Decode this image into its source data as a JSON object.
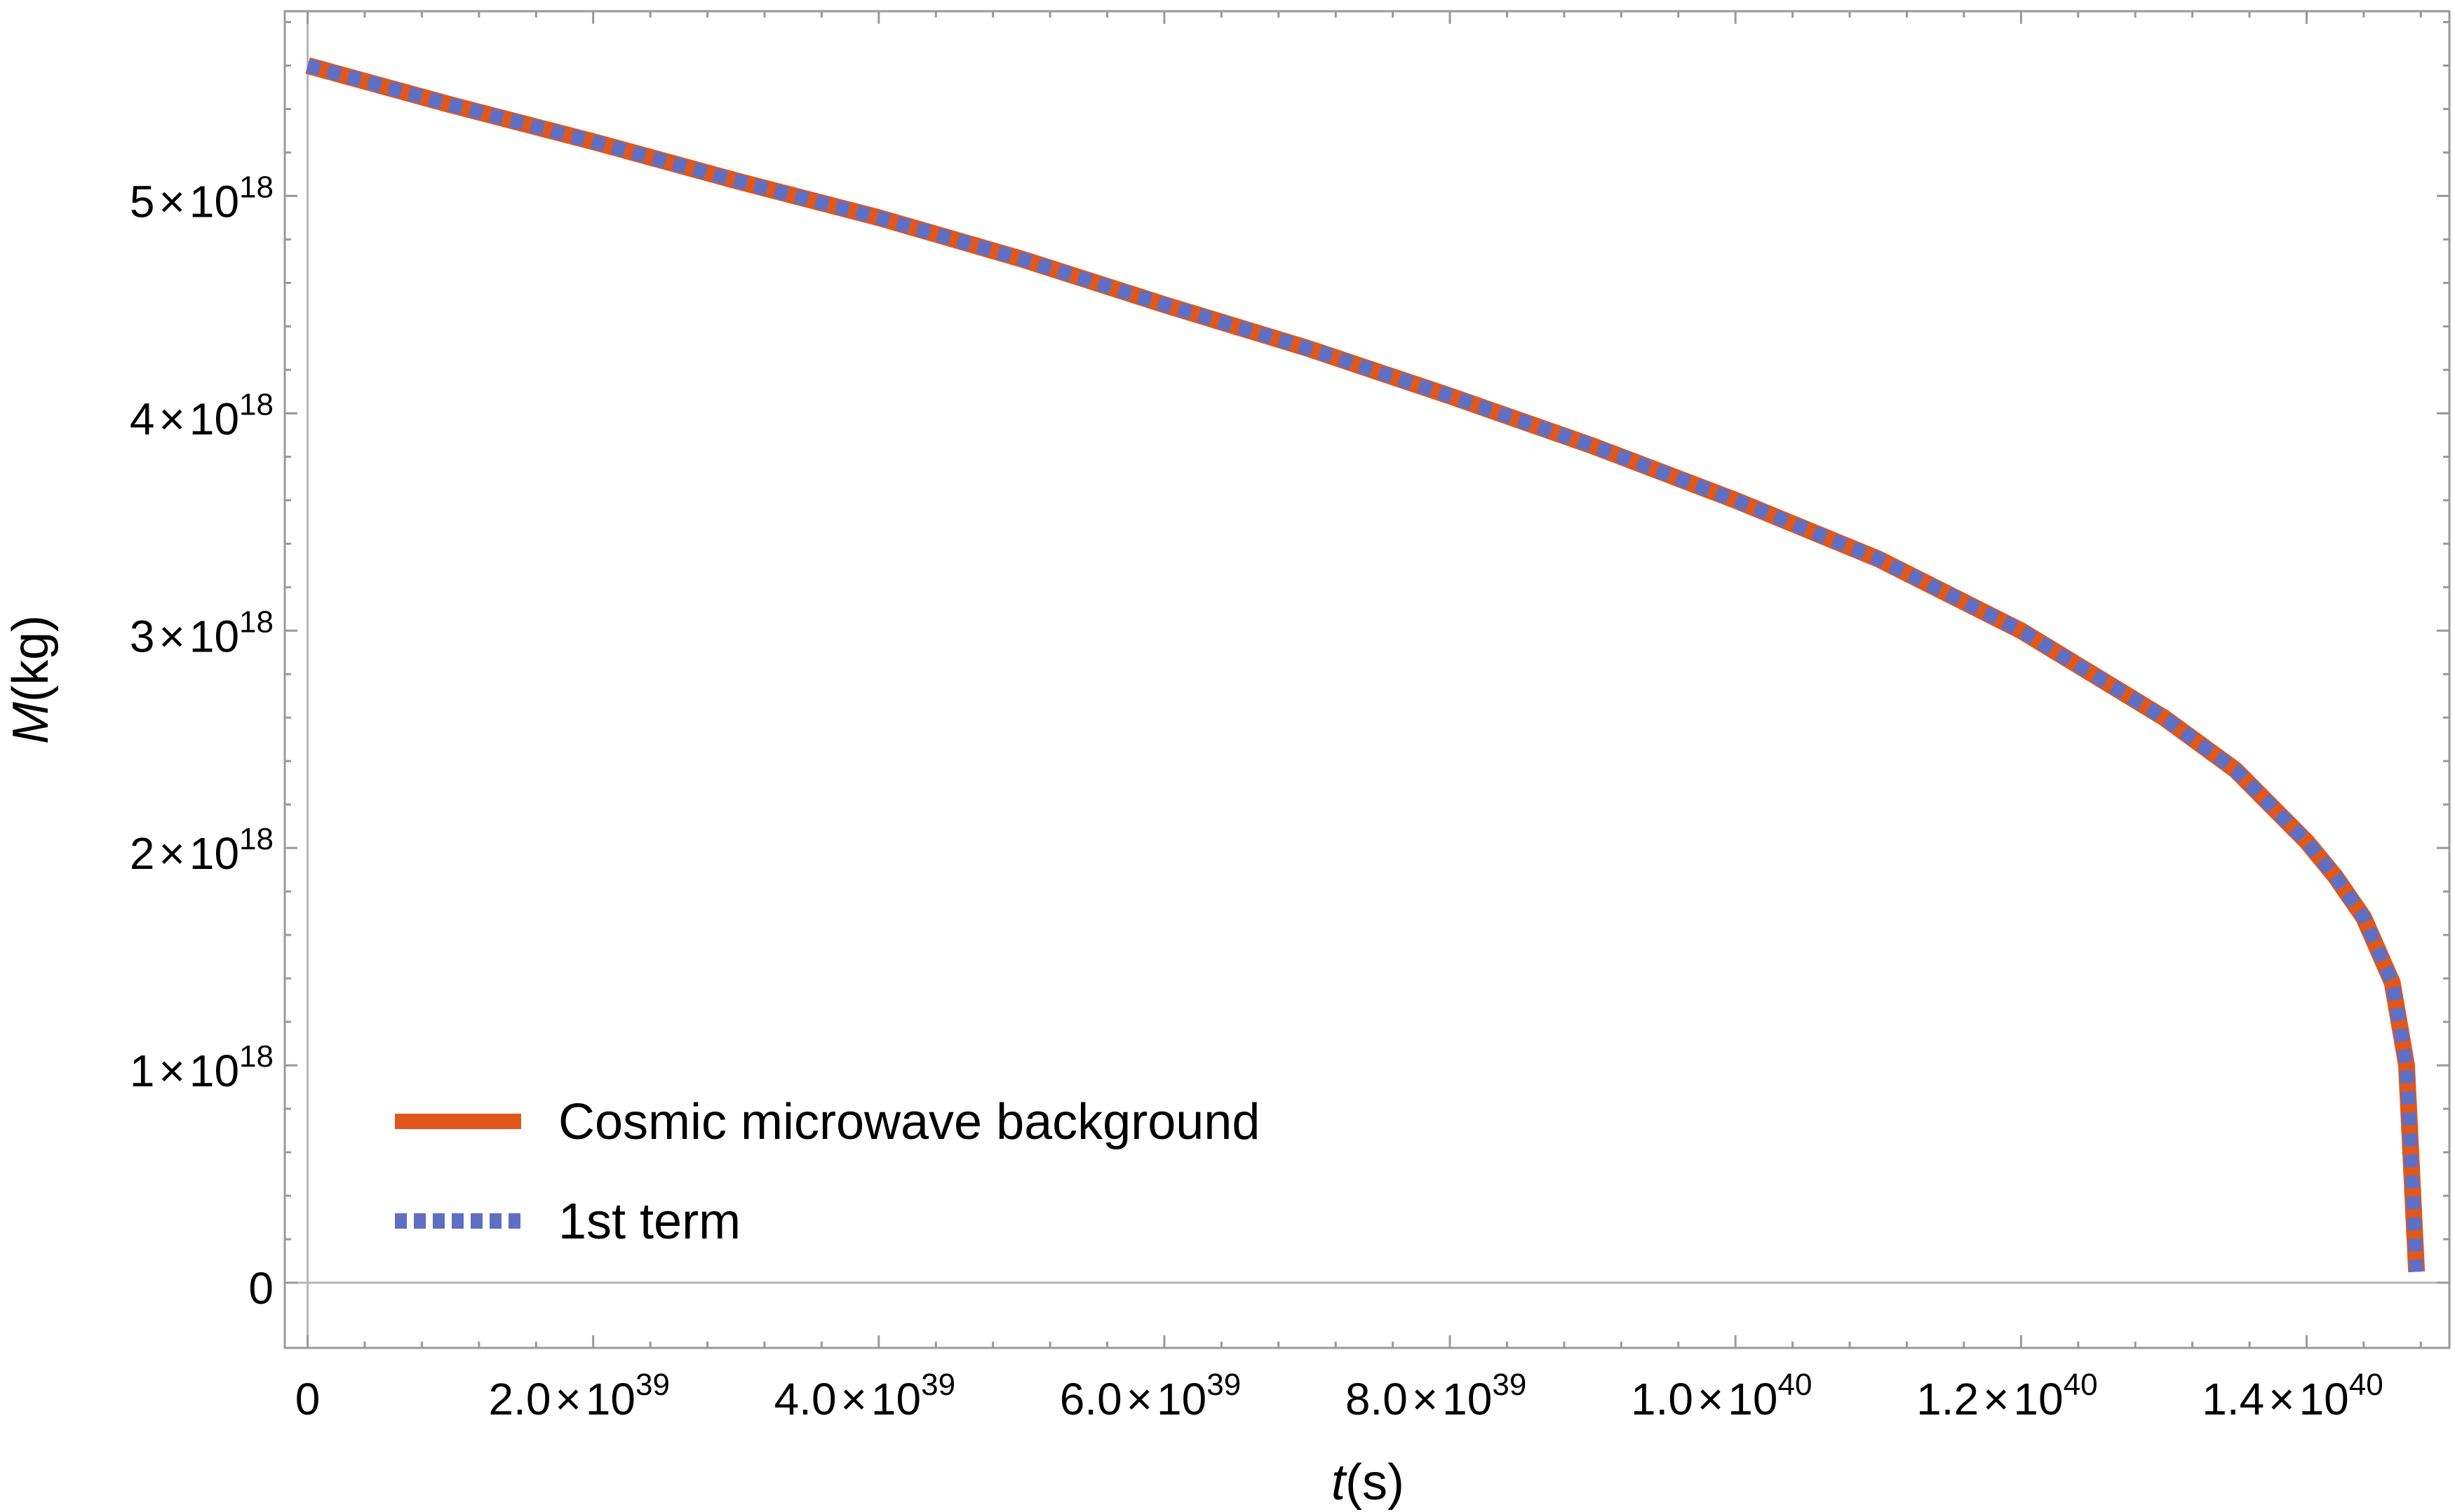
{
  "chart_data": {
    "type": "line",
    "title": "",
    "xlabel": {
      "var": "t",
      "unit": "(s)"
    },
    "ylabel": {
      "var": "M",
      "unit": "(kg)"
    },
    "xlim": [
      -1.6e+38,
      1.5e+40
    ],
    "ylim": [
      -3e+17,
      5.85e+18
    ],
    "grid": false,
    "legend_position": "bottom-left",
    "x_ticks": [
      {
        "value": 0,
        "mantissa": "0",
        "times": "",
        "base": "",
        "exp": ""
      },
      {
        "value": 2e+39,
        "mantissa": "2.0",
        "times": "×",
        "base": "10",
        "exp": "39"
      },
      {
        "value": 4e+39,
        "mantissa": "4.0",
        "times": "×",
        "base": "10",
        "exp": "39"
      },
      {
        "value": 6e+39,
        "mantissa": "6.0",
        "times": "×",
        "base": "10",
        "exp": "39"
      },
      {
        "value": 8e+39,
        "mantissa": "8.0",
        "times": "×",
        "base": "10",
        "exp": "39"
      },
      {
        "value": 1e+40,
        "mantissa": "1.0",
        "times": "×",
        "base": "10",
        "exp": "40"
      },
      {
        "value": 1.2e+40,
        "mantissa": "1.2",
        "times": "×",
        "base": "10",
        "exp": "40"
      },
      {
        "value": 1.4e+40,
        "mantissa": "1.4",
        "times": "×",
        "base": "10",
        "exp": "40"
      }
    ],
    "y_ticks": [
      {
        "value": 0,
        "mantissa": "0",
        "times": "",
        "base": "",
        "exp": ""
      },
      {
        "value": 1e+18,
        "mantissa": "1",
        "times": "×",
        "base": "10",
        "exp": "18"
      },
      {
        "value": 2e+18,
        "mantissa": "2",
        "times": "×",
        "base": "10",
        "exp": "18"
      },
      {
        "value": 3e+18,
        "mantissa": "3",
        "times": "×",
        "base": "10",
        "exp": "18"
      },
      {
        "value": 4e+18,
        "mantissa": "4",
        "times": "×",
        "base": "10",
        "exp": "18"
      },
      {
        "value": 5e+18,
        "mantissa": "5",
        "times": "×",
        "base": "10",
        "exp": "18"
      }
    ],
    "series": [
      {
        "name": "Cosmic microwave background",
        "color": "#e0571c",
        "style": "solid",
        "x": [
          0,
          1e+39,
          2e+39,
          3e+39,
          4e+39,
          5e+39,
          6e+39,
          7e+39,
          8e+39,
          9e+39,
          1e+40,
          1.1e+40,
          1.2e+40,
          1.3e+40,
          1.35e+40,
          1.4e+40,
          1.42e+40,
          1.44e+40,
          1.46e+40,
          1.47e+40,
          1.477e+40
        ],
        "y": [
          5.6e+18,
          5.42e+18,
          5.25e+18,
          5.07e+18,
          4.9e+18,
          4.71e+18,
          4.5e+18,
          4.3e+18,
          4.08e+18,
          3.85e+18,
          3.6e+18,
          3.33e+18,
          3e+18,
          2.6e+18,
          2.36e+18,
          2.03e+18,
          1.87e+18,
          1.68e+18,
          1.38e+18,
          1e+18,
          5e+16
        ]
      },
      {
        "name": "1st term",
        "color": "#5f6fc4",
        "style": "dotted",
        "x": [
          0,
          1e+39,
          2e+39,
          3e+39,
          4e+39,
          5e+39,
          6e+39,
          7e+39,
          8e+39,
          9e+39,
          1e+40,
          1.1e+40,
          1.2e+40,
          1.3e+40,
          1.35e+40,
          1.4e+40,
          1.42e+40,
          1.44e+40,
          1.46e+40,
          1.47e+40,
          1.477e+40
        ],
        "y": [
          5.6e+18,
          5.42e+18,
          5.25e+18,
          5.07e+18,
          4.9e+18,
          4.71e+18,
          4.5e+18,
          4.3e+18,
          4.08e+18,
          3.85e+18,
          3.6e+18,
          3.33e+18,
          3e+18,
          2.6e+18,
          2.36e+18,
          2.03e+18,
          1.87e+18,
          1.68e+18,
          1.38e+18,
          1e+18,
          5e+16
        ]
      }
    ]
  }
}
